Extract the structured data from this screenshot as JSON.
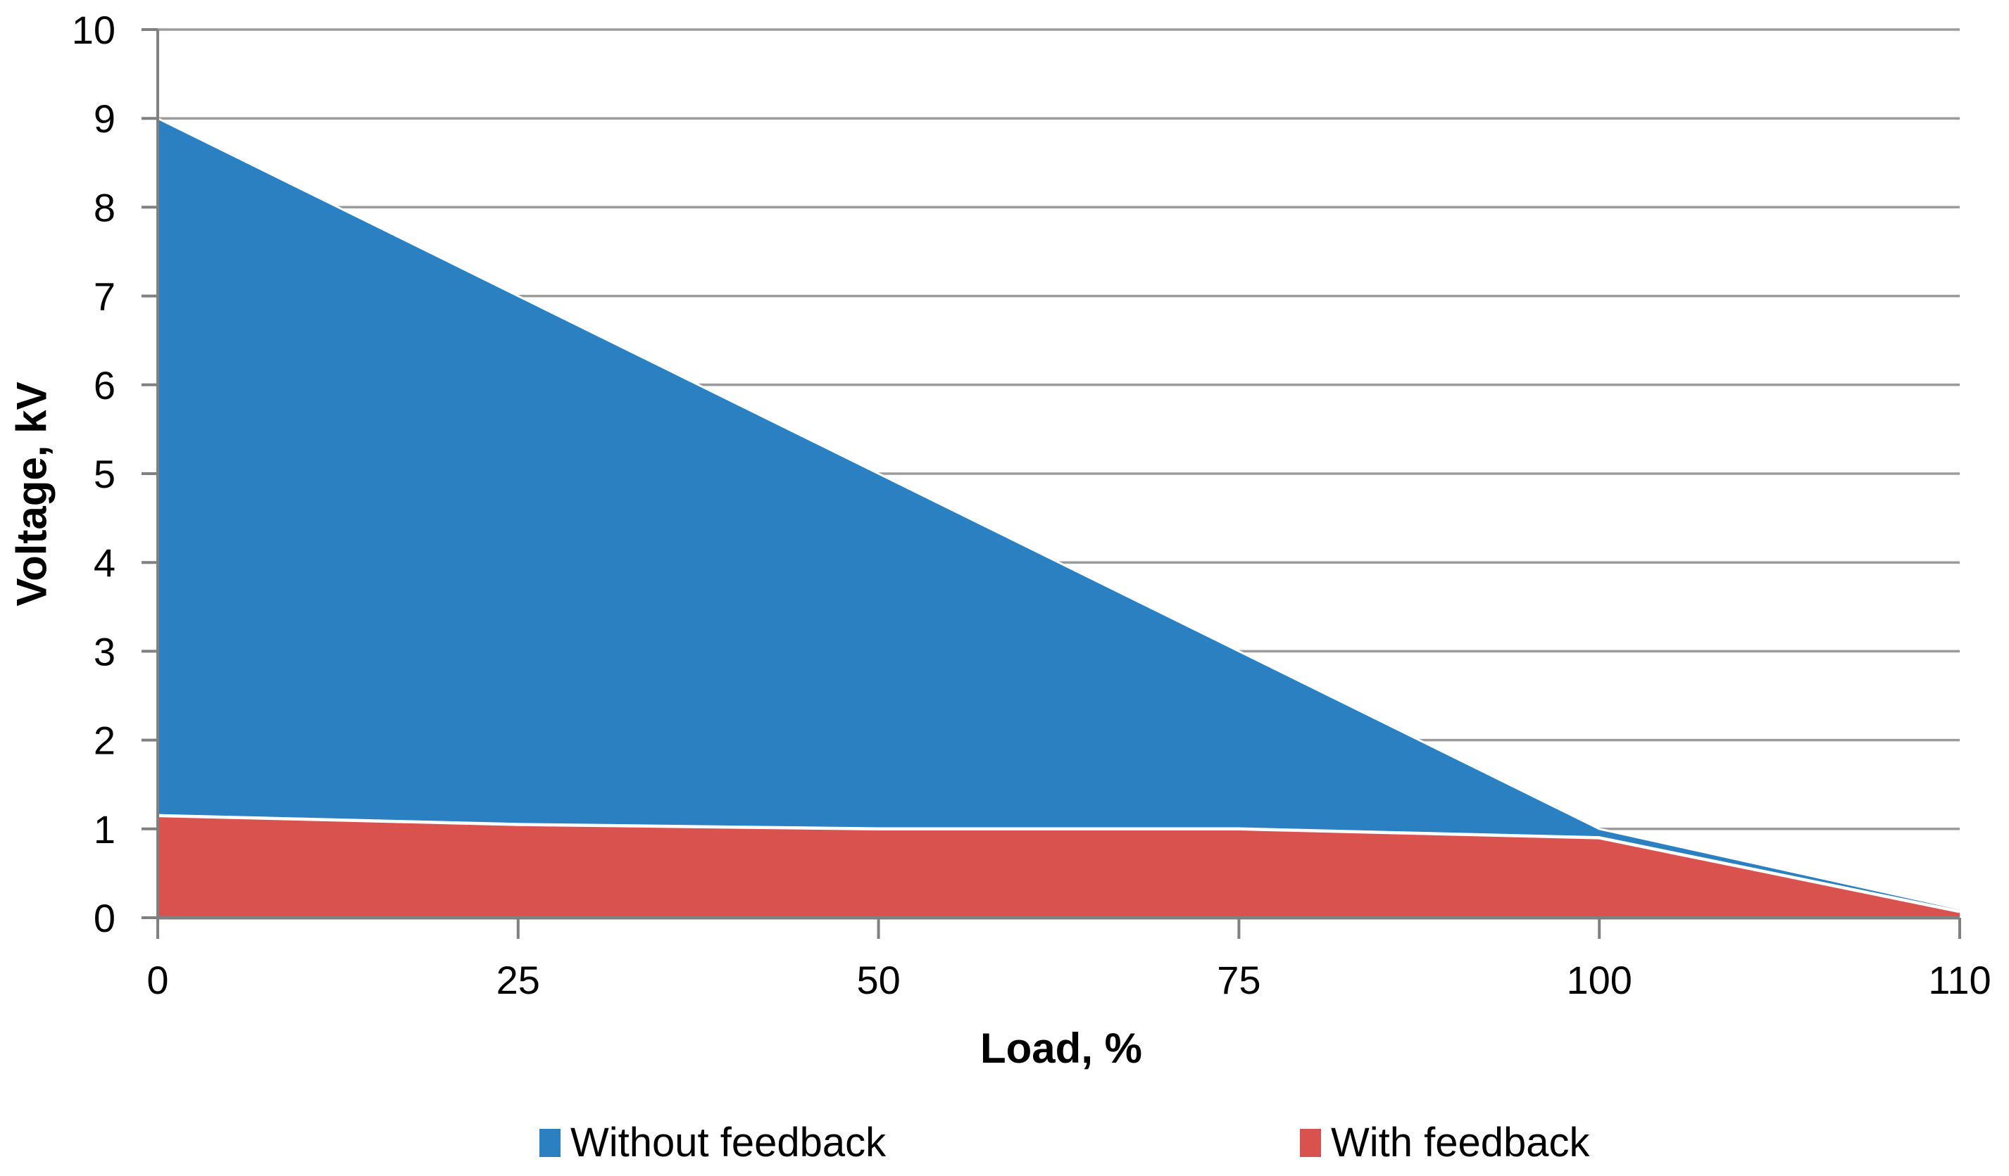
{
  "chart_data": {
    "type": "area",
    "title": "",
    "xlabel": "Load, %",
    "ylabel": "Voltage, kV",
    "categories": [
      "0",
      "25",
      "50",
      "75",
      "100",
      "110"
    ],
    "series": [
      {
        "name": "Without feedback",
        "color": "#2A80C1",
        "values": [
          9.0,
          7.0,
          5.0,
          3.0,
          1.0,
          0.1
        ]
      },
      {
        "name": "With feedback",
        "color": "#DA524E",
        "values": [
          1.15,
          1.05,
          1.0,
          1.0,
          0.9,
          0.07
        ]
      }
    ],
    "ylim": [
      0,
      10
    ],
    "yticks": [
      "0",
      "1",
      "2",
      "3",
      "4",
      "5",
      "6",
      "7",
      "8",
      "9",
      "10"
    ],
    "grid": "horizontal-on",
    "legend_position": "bottom",
    "colors": {
      "gridline": "#9B9B9B",
      "axis": "#808080",
      "background": "#FFFFFF",
      "area_border": "#FFFFFF",
      "text": "#000000"
    }
  }
}
